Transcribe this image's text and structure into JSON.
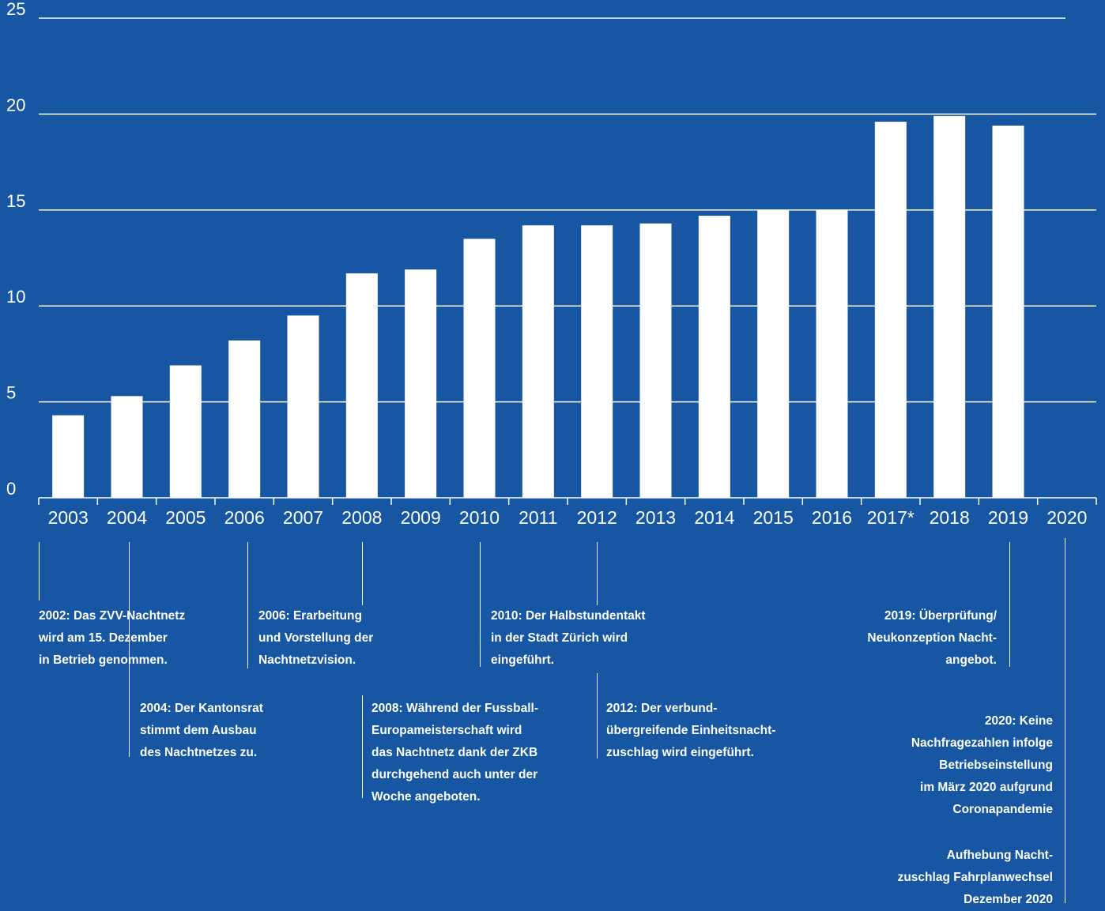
{
  "colors": {
    "background": "#1656a3",
    "bars": "#ffffff",
    "gridlines": "#ffffff",
    "text": "#ffffff"
  },
  "chart_data": {
    "type": "bar",
    "categories": [
      "2003",
      "2004",
      "2005",
      "2006",
      "2007",
      "2008",
      "2009",
      "2010",
      "2011",
      "2012",
      "2013",
      "2014",
      "2015",
      "2016",
      "2017*",
      "2018",
      "2019",
      "2020"
    ],
    "values": [
      4.3,
      5.3,
      6.9,
      8.2,
      9.5,
      11.7,
      11.9,
      13.5,
      14.2,
      14.2,
      14.3,
      14.7,
      15.0,
      15.0,
      19.6,
      19.9,
      19.4,
      null
    ],
    "ylim": [
      0,
      25
    ],
    "yticks": [
      "0",
      "5",
      "10",
      "15",
      "20",
      "25"
    ],
    "grid": true,
    "title": "",
    "xlabel": "",
    "ylabel": ""
  },
  "annotations": {
    "a2002": "2002: Das ZVV-Nachtnetz\nwird am 15. Dezember\nin Betrieb genommen.",
    "a2004": "2004: Der Kantonsrat\nstimmt dem Ausbau\ndes Nachtnetzes zu.",
    "a2006": "2006: Erarbeitung\nund Vorstellung der\nNachtnetzvision.",
    "a2008": "2008: Während der Fussball-\nEuropameisterschaft wird\ndas Nachtnetz dank der ZKB\ndurchgehend auch unter der\nWoche angeboten.",
    "a2010": "2010: Der Halbstundentakt\nin der Stadt Zürich wird\neingeführt.",
    "a2012": "2012: Der verbund-\nübergreifende Einheitsnacht-\nzuschlag wird eingeführt.",
    "a2019": "2019: Überprüfung/\nNeukonzeption Nacht-\nangebot.",
    "a2020a": "2020: Keine\nNachfragezahlen infolge\nBetriebseinstellung\nim März 2020 aufgrund\nCoronapandemie",
    "a2020b": "Aufhebung Nacht-\nzuschlag Fahrplanwechsel\nDezember 2020"
  }
}
